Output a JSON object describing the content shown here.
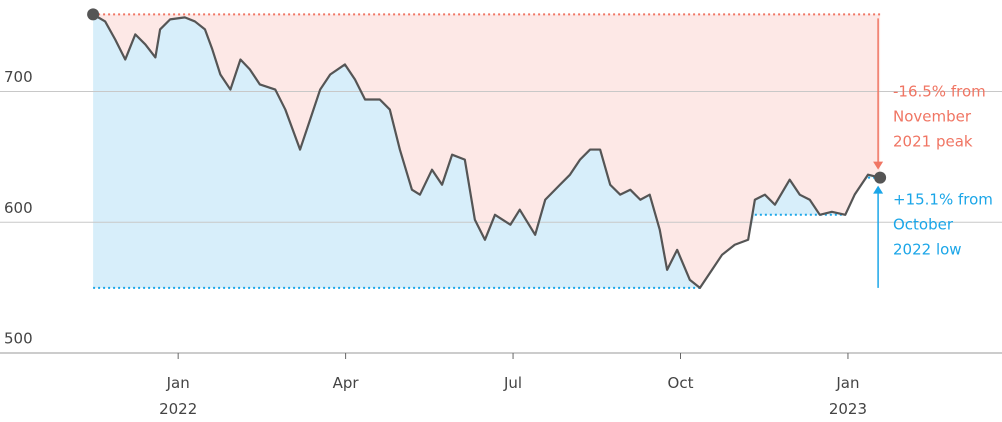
{
  "chart_data": {
    "type": "line",
    "x": [
      2021.873,
      2021.891,
      2021.906,
      2021.921,
      2021.936,
      2021.951,
      2021.966,
      2021.973,
      2021.988,
      2022.01,
      2022.025,
      2022.04,
      2022.051,
      2022.063,
      2022.078,
      2022.093,
      2022.107,
      2022.122,
      2022.145,
      2022.16,
      2022.182,
      2022.197,
      2022.212,
      2022.227,
      2022.249,
      2022.264,
      2022.279,
      2022.301,
      2022.316,
      2022.331,
      2022.349,
      2022.361,
      2022.379,
      2022.394,
      2022.409,
      2022.428,
      2022.443,
      2022.458,
      2022.473,
      2022.496,
      2022.51,
      2022.533,
      2022.548,
      2022.57,
      2022.585,
      2022.6,
      2022.615,
      2022.63,
      2022.645,
      2022.66,
      2022.675,
      2022.69,
      2022.704,
      2022.719,
      2022.73,
      2022.745,
      2022.764,
      2022.779,
      2022.797,
      2022.812,
      2022.831,
      2022.851,
      2022.861,
      2022.876,
      2022.891,
      2022.913,
      2022.928,
      2022.943,
      2022.958,
      2022.976,
      2022.996,
      2023.01,
      2023.03,
      2023.048
    ],
    "series": [
      {
        "color": "#555555",
        "values": [
          759.0,
          753.6,
          739.8,
          724.5,
          743.7,
          736.0,
          726.1,
          747.5,
          755.2,
          756.7,
          753.6,
          747.5,
          732.2,
          713.0,
          701.5,
          724.5,
          716.9,
          705.4,
          701.5,
          686.2,
          655.6,
          678.5,
          701.5,
          713.0,
          720.7,
          709.2,
          693.9,
          693.9,
          686.2,
          655.6,
          624.9,
          621.1,
          640.2,
          628.7,
          651.7,
          647.9,
          601.9,
          586.6,
          605.7,
          598.1,
          609.6,
          590.4,
          617.2,
          628.7,
          636.4,
          647.9,
          655.6,
          655.6,
          628.7,
          621.1,
          624.9,
          617.2,
          621.1,
          594.3,
          563.6,
          578.9,
          555.9,
          549.8,
          563.6,
          575.1,
          582.8,
          586.6,
          617.2,
          621.1,
          613.4,
          632.6,
          621.1,
          617.2,
          605.7,
          608.0,
          605.7,
          621.1,
          636.4,
          634.1
        ]
      }
    ],
    "xlim": [
      2021.734,
      2023.23
    ],
    "ylim": [
      500,
      770
    ],
    "yticks": [
      500,
      600,
      700
    ],
    "xticks": [
      {
        "value": 2022,
        "label": "Jan 2022"
      },
      {
        "value": 2022.25,
        "label": "Apr"
      },
      {
        "value": 2022.5,
        "label": "Jul"
      },
      {
        "value": 2022.75,
        "label": "Oct"
      },
      {
        "value": 2023,
        "label": "Jan 2023"
      }
    ],
    "grid": true,
    "annotations": [
      {
        "lines": [
          "-16.5% from",
          "November",
          "2021 peak"
        ],
        "color": "#f07563"
      },
      {
        "lines": [
          "+15.1% from",
          "October",
          "2022 low"
        ],
        "color": "#1ba6e8"
      }
    ]
  }
}
